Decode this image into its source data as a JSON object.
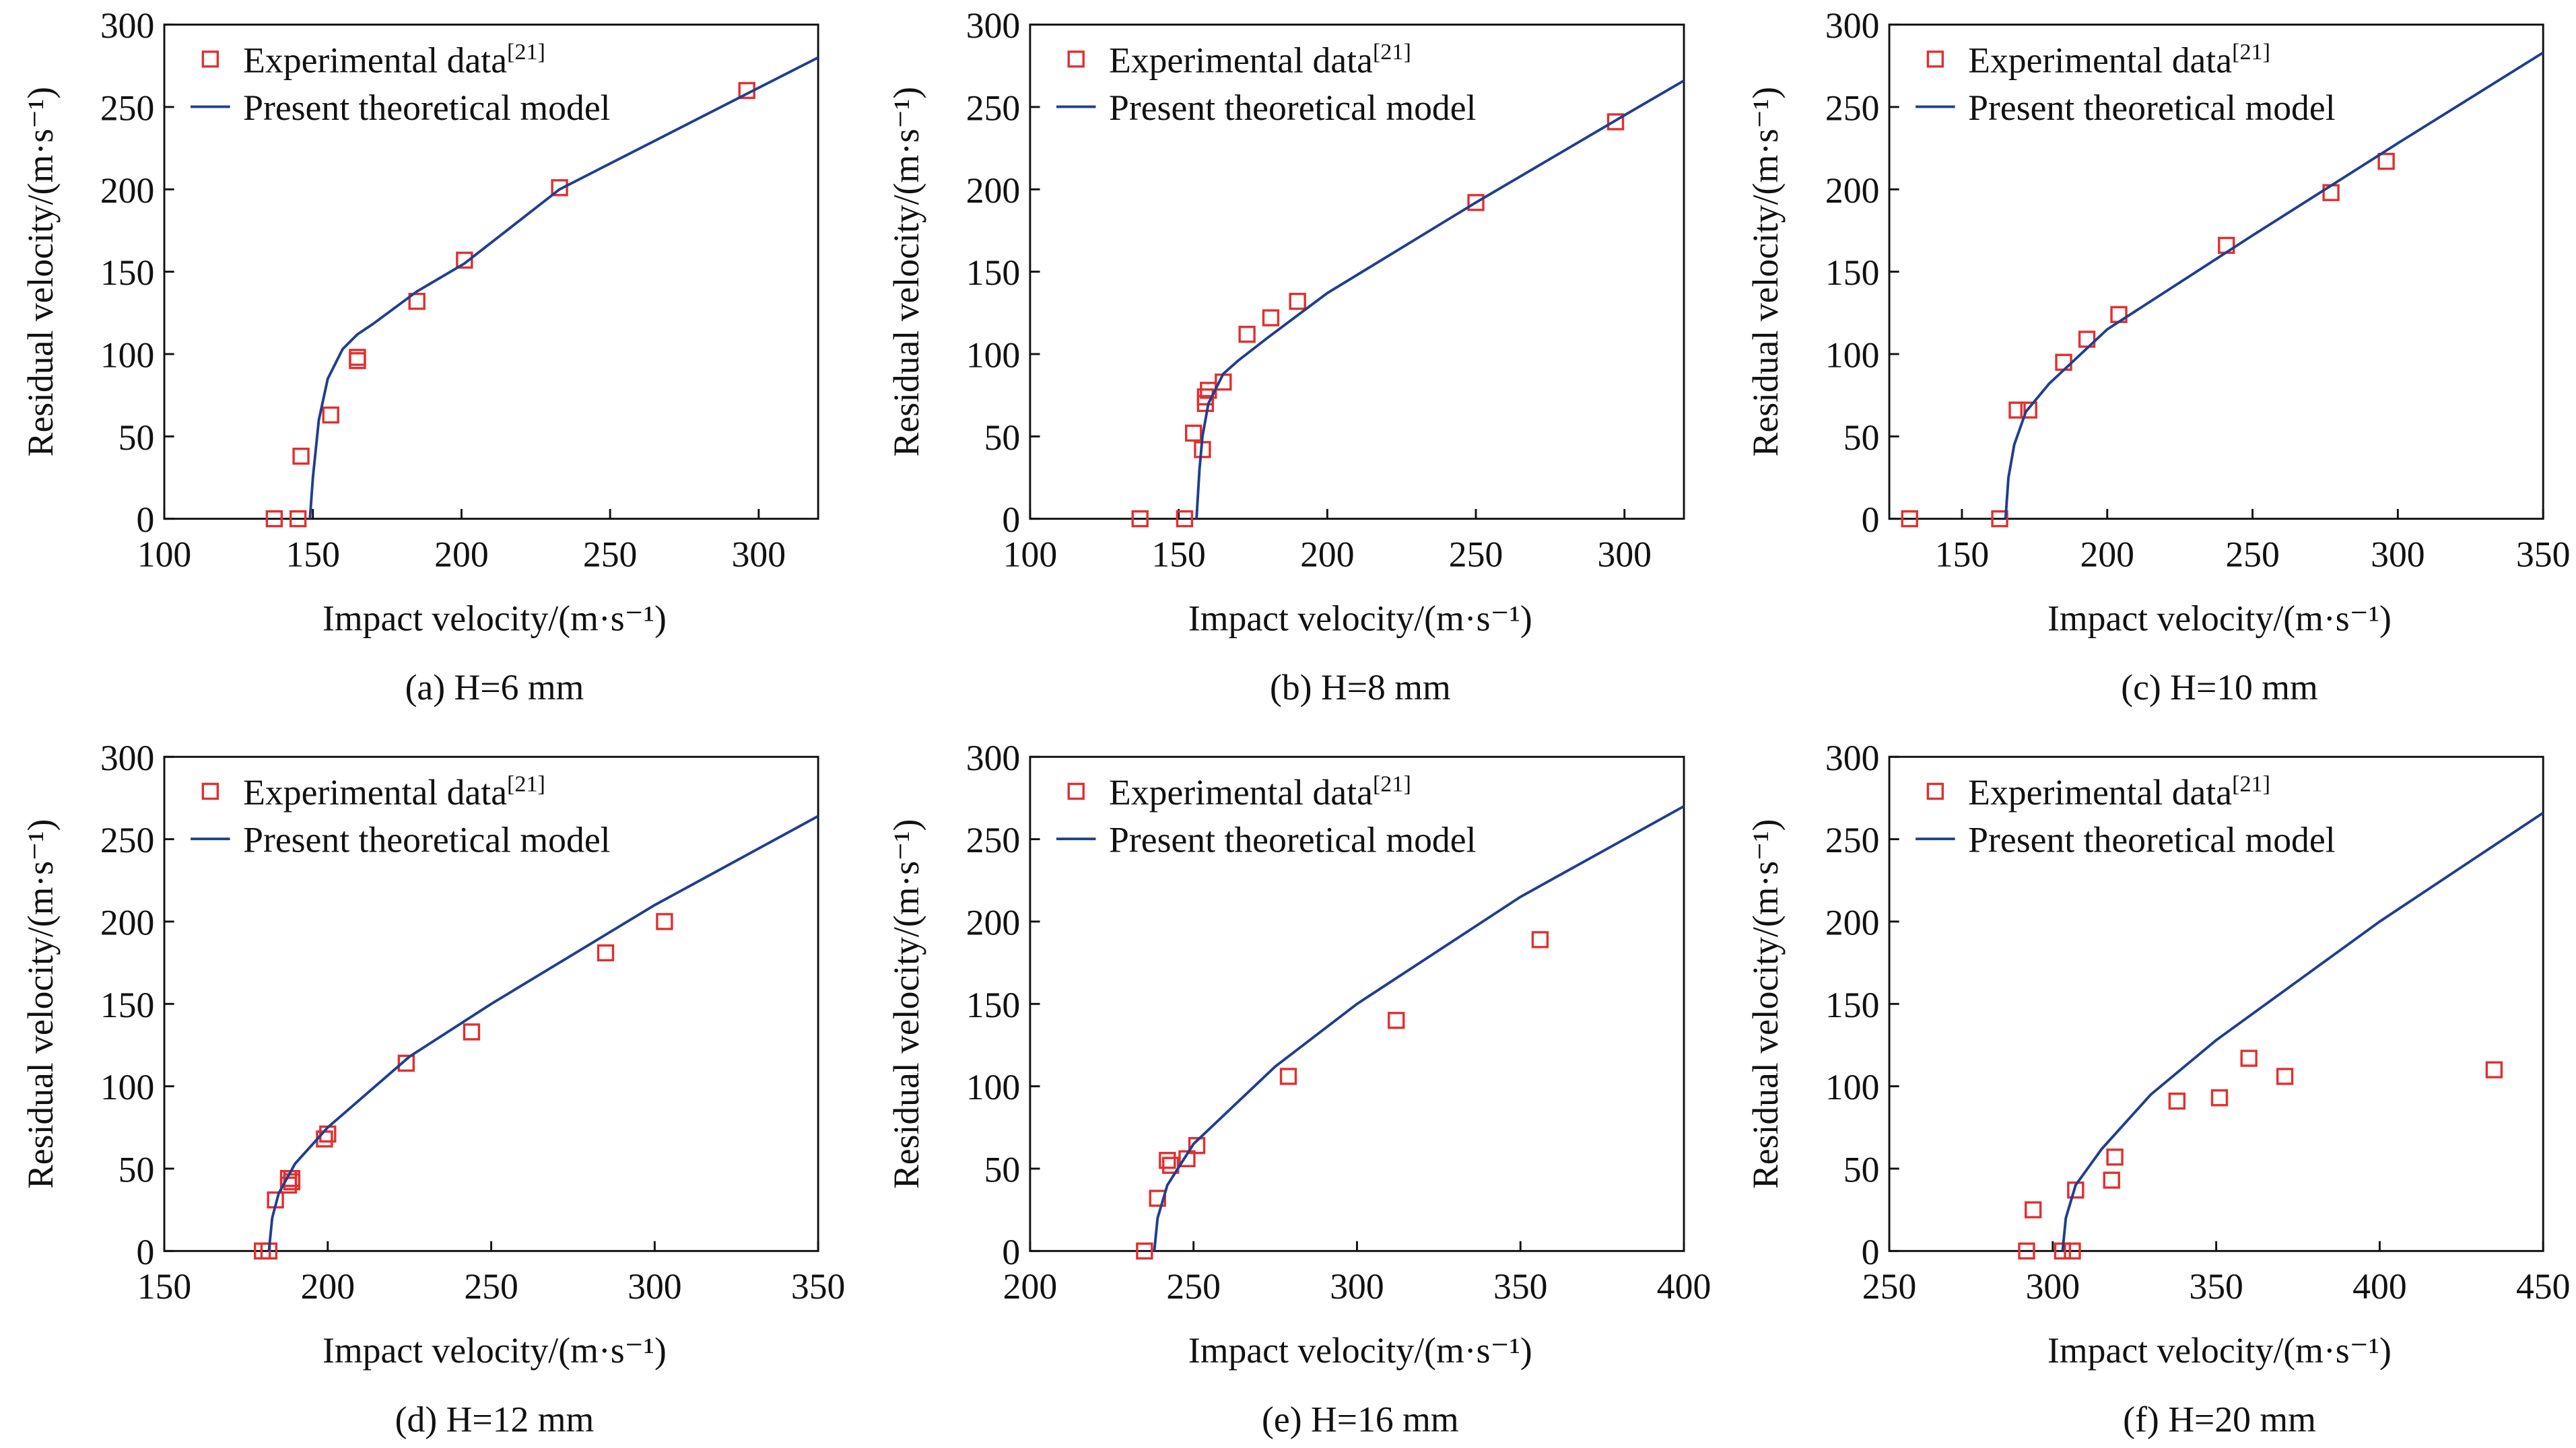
{
  "chart_data": [
    {
      "type": "scatter",
      "caption": "(a) H=6 mm",
      "xlabel": "Impact velocity/(m·s⁻¹)",
      "ylabel": "Residual velocity/(m·s⁻¹)",
      "xlim": [
        100,
        320
      ],
      "xticks": [
        100,
        150,
        200,
        250,
        300
      ],
      "ylim": [
        0,
        300
      ],
      "yticks": [
        0,
        50,
        100,
        150,
        200,
        250,
        300
      ],
      "series": [
        {
          "name": "Experimental data[21]",
          "color": "#e03030",
          "marker": "square",
          "x": [
            137,
            145,
            146,
            156,
            165,
            165,
            185,
            201,
            233,
            296
          ],
          "values": [
            0,
            0,
            38,
            63,
            96,
            98,
            132,
            157,
            201,
            260
          ]
        },
        {
          "name": "Present theoretical model",
          "color": "#1f3f8f",
          "marker": "line",
          "x": [
            149,
            150,
            152,
            155,
            160,
            165,
            170,
            185,
            201,
            233,
            296,
            320
          ],
          "values": [
            0,
            25,
            60,
            85,
            103,
            112,
            118,
            138,
            155,
            200,
            258,
            280
          ]
        }
      ]
    },
    {
      "type": "scatter",
      "caption": "(b) H=8 mm",
      "xlabel": "Impact velocity/(m·s⁻¹)",
      "ylabel": "Residual velocity/(m·s⁻¹)",
      "xlim": [
        100,
        320
      ],
      "xticks": [
        100,
        150,
        200,
        250,
        300
      ],
      "ylim": [
        0,
        300
      ],
      "yticks": [
        0,
        50,
        100,
        150,
        200,
        250,
        300
      ],
      "series": [
        {
          "name": "Experimental data[21]",
          "color": "#e03030",
          "marker": "square",
          "x": [
            137,
            152,
            155,
            158,
            159,
            159,
            160,
            165,
            173,
            181,
            190,
            250,
            297
          ],
          "values": [
            0,
            0,
            52,
            42,
            70,
            74,
            78,
            83,
            112,
            122,
            132,
            192,
            241
          ]
        },
        {
          "name": "Present theoretical model",
          "color": "#1f3f8f",
          "marker": "line",
          "x": [
            156,
            157,
            158,
            160,
            165,
            170,
            180,
            200,
            250,
            300,
            320
          ],
          "values": [
            0,
            30,
            50,
            70,
            88,
            96,
            110,
            137,
            192,
            245,
            266
          ]
        }
      ]
    },
    {
      "type": "scatter",
      "caption": "(c) H=10 mm",
      "xlabel": "Impact velocity/(m·s⁻¹)",
      "ylabel": "Residual velocity/(m·s⁻¹)",
      "xlim": [
        125,
        350
      ],
      "xticks": [
        150,
        200,
        250,
        300,
        350
      ],
      "ylim": [
        0,
        300
      ],
      "yticks": [
        0,
        50,
        100,
        150,
        200,
        250,
        300
      ],
      "series": [
        {
          "name": "Experimental data[21]",
          "color": "#e03030",
          "marker": "square",
          "x": [
            132,
            163,
            169,
            173,
            185,
            193,
            204,
            241,
            277,
            296
          ],
          "values": [
            0,
            0,
            66,
            66,
            95,
            109,
            124,
            166,
            198,
            217
          ]
        },
        {
          "name": "Present theoretical model",
          "color": "#1f3f8f",
          "marker": "line",
          "x": [
            165,
            166,
            168,
            172,
            180,
            200,
            250,
            300,
            350
          ],
          "values": [
            0,
            25,
            45,
            65,
            82,
            115,
            172,
            228,
            283
          ]
        }
      ]
    },
    {
      "type": "scatter",
      "caption": "(d) H=12 mm",
      "xlabel": "Impact velocity/(m·s⁻¹)",
      "ylabel": "Residual velocity/(m·s⁻¹)",
      "xlim": [
        150,
        350
      ],
      "xticks": [
        150,
        200,
        250,
        300,
        350
      ],
      "ylim": [
        0,
        300
      ],
      "yticks": [
        0,
        50,
        100,
        150,
        200,
        250,
        300
      ],
      "series": [
        {
          "name": "Experimental data[21]",
          "color": "#e03030",
          "marker": "square",
          "x": [
            180,
            182,
            184,
            188,
            188,
            189,
            189,
            199,
            200,
            224,
            244,
            285,
            303
          ],
          "values": [
            0,
            0,
            31,
            40,
            44,
            42,
            44,
            68,
            71,
            114,
            133,
            181,
            200
          ]
        },
        {
          "name": "Present theoretical model",
          "color": "#1f3f8f",
          "marker": "line",
          "x": [
            182,
            183,
            185,
            190,
            200,
            225,
            250,
            300,
            350
          ],
          "values": [
            0,
            20,
            35,
            53,
            75,
            118,
            150,
            210,
            264
          ]
        }
      ]
    },
    {
      "type": "scatter",
      "caption": "(e) H=16 mm",
      "xlabel": "Impact velocity/(m·s⁻¹)",
      "ylabel": "Residual velocity/(m·s⁻¹)",
      "xlim": [
        200,
        400
      ],
      "xticks": [
        200,
        250,
        300,
        350,
        400
      ],
      "ylim": [
        0,
        300
      ],
      "yticks": [
        0,
        50,
        100,
        150,
        200,
        250,
        300
      ],
      "series": [
        {
          "name": "Experimental data[21]",
          "color": "#e03030",
          "marker": "square",
          "x": [
            235,
            239,
            242,
            243,
            248,
            251,
            279,
            312,
            356
          ],
          "values": [
            0,
            32,
            55,
            52,
            56,
            64,
            106,
            140,
            189
          ]
        },
        {
          "name": "Present theoretical model",
          "color": "#1f3f8f",
          "marker": "line",
          "x": [
            238,
            239,
            242,
            250,
            275,
            300,
            350,
            400
          ],
          "values": [
            0,
            20,
            40,
            65,
            112,
            150,
            215,
            270
          ]
        }
      ]
    },
    {
      "type": "scatter",
      "caption": "(f) H=20 mm",
      "xlabel": "Impact velocity/(m·s⁻¹)",
      "ylabel": "Residual velocity/(m·s⁻¹)",
      "xlim": [
        250,
        450
      ],
      "xticks": [
        250,
        300,
        350,
        400,
        450
      ],
      "ylim": [
        0,
        300
      ],
      "yticks": [
        0,
        50,
        100,
        150,
        200,
        250,
        300
      ],
      "series": [
        {
          "name": "Experimental data[21]",
          "color": "#e03030",
          "marker": "square",
          "x": [
            292,
            294,
            303,
            306,
            307,
            318,
            319,
            338,
            351,
            360,
            371,
            435
          ],
          "values": [
            0,
            25,
            0,
            0,
            37,
            43,
            57,
            91,
            93,
            117,
            106,
            110
          ]
        },
        {
          "name": "Present theoretical model",
          "color": "#1f3f8f",
          "marker": "line",
          "x": [
            303,
            304,
            307,
            315,
            330,
            350,
            400,
            450
          ],
          "values": [
            0,
            20,
            40,
            62,
            95,
            128,
            200,
            266
          ]
        }
      ]
    }
  ]
}
